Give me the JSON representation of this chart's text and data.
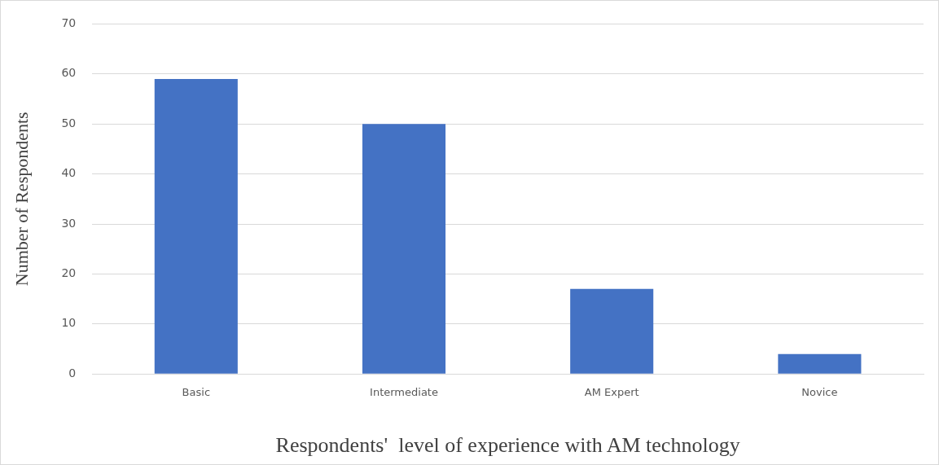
{
  "chart_data": {
    "type": "bar",
    "xlabel": "Respondents'  level of experience with AM technology",
    "ylabel": "Number of Respondents",
    "categories": [
      "Basic",
      "Intermediate",
      "AM Expert",
      "Novice"
    ],
    "values": [
      59,
      50,
      17,
      4
    ],
    "color": "#4472c4",
    "ylim": [
      0,
      70
    ],
    "yticks": [
      0,
      10,
      20,
      30,
      40,
      50,
      60,
      70
    ],
    "grid": "y"
  }
}
